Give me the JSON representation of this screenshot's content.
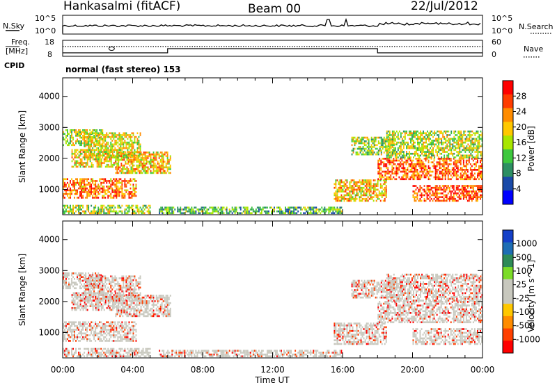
{
  "header": {
    "station": "Hankasalmi (fitACF)",
    "beam": "Beam 00",
    "date": "22/Jul/2012"
  },
  "status_panel": {
    "nsky_label": "N.Sky",
    "nsky_ticks": [
      "10^5",
      "10^0"
    ],
    "nsearch_label": "N.Search",
    "freq_label": "Freq.",
    "freq_unit": "[MHz]",
    "freq_ticks": [
      "18",
      "8"
    ],
    "nave_ticks": [
      "60",
      "0"
    ],
    "nave_label": "Nave",
    "cpid_label": "CPID",
    "cpid_text": "normal (fast stereo) 153"
  },
  "chart_data": [
    {
      "type": "heatmap",
      "name": "power",
      "ylabel": "Slant Range [km]",
      "y_ticks": [
        "1000",
        "2000",
        "3000",
        "4000"
      ],
      "ylim": [
        180,
        4600
      ],
      "colorbar": {
        "label": "Power [dB]",
        "ticks": [
          "28",
          "24",
          "20",
          "16",
          "12",
          "8",
          "4"
        ],
        "colors": [
          "#ff0000",
          "#ff3c00",
          "#ff8c00",
          "#ffc800",
          "#a8e600",
          "#3ec83e",
          "#2d8f63",
          "#1a4aa8",
          "#0000ff"
        ]
      }
    },
    {
      "type": "heatmap",
      "name": "velocity",
      "ylabel": "Slant Range [km]",
      "y_ticks": [
        "1000",
        "2000",
        "3000",
        "4000"
      ],
      "ylim": [
        180,
        4600
      ],
      "colorbar": {
        "label": "Velocity [m s^-1]",
        "ticks": [
          "1000",
          "500",
          "100",
          "25",
          "-25",
          "-100",
          "-500",
          "-1000"
        ],
        "colors": [
          "#1440c8",
          "#1e6eb4",
          "#2e8b57",
          "#7cdc28",
          "#c8c8be",
          "#c8c8be",
          "#ffc800",
          "#ff8c00",
          "#ff4000",
          "#ff0000"
        ]
      }
    }
  ],
  "time_axis": {
    "xlabel": "Time UT",
    "ticks": [
      "00:00",
      "04:00",
      "08:00",
      "12:00",
      "16:00",
      "20:00",
      "00:00"
    ]
  }
}
